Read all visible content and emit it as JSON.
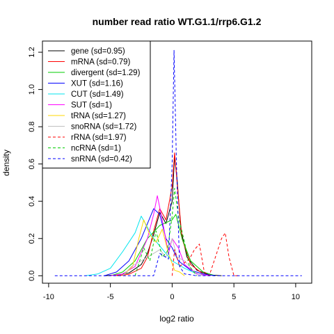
{
  "chart_data": {
    "type": "line",
    "title": "number read ratio WT.G1.1/rrp6.G1.2",
    "xlabel": "log2 ratio",
    "ylabel": "density",
    "xlim": [
      -10.5,
      11.3
    ],
    "ylim": [
      -0.04,
      1.26
    ],
    "xticks": [
      -10,
      -5,
      0,
      5,
      10
    ],
    "xtick_labels": [
      "-10",
      "-5",
      "0",
      "5",
      "10"
    ],
    "yticks": [
      0.0,
      0.2,
      0.4,
      0.6,
      0.8,
      1.0,
      1.2
    ],
    "ytick_labels": [
      "0.0",
      "0.2",
      "0.4",
      "0.6",
      "0.8",
      "1.0",
      "1.2"
    ],
    "grid": false,
    "legend_position": "top-left",
    "series": [
      {
        "name": "gene (sd=0.95)",
        "color": "#000000",
        "dash": "solid",
        "points": [
          [
            -5.5,
            0
          ],
          [
            -4.5,
            0.004
          ],
          [
            -3.5,
            0.015
          ],
          [
            -2.5,
            0.06
          ],
          [
            -2,
            0.12
          ],
          [
            -1.5,
            0.22
          ],
          [
            -1,
            0.34
          ],
          [
            -0.5,
            0.28
          ],
          [
            0,
            0.4
          ],
          [
            0.2,
            0.64
          ],
          [
            0.4,
            0.52
          ],
          [
            0.7,
            0.25
          ],
          [
            1.2,
            0.1
          ],
          [
            2,
            0.03
          ],
          [
            3,
            0.005
          ],
          [
            4,
            0
          ]
        ]
      },
      {
        "name": "mRNA (sd=0.79)",
        "color": "#ff0000",
        "dash": "solid",
        "points": [
          [
            -4.5,
            0
          ],
          [
            -3.5,
            0.008
          ],
          [
            -2.5,
            0.04
          ],
          [
            -2,
            0.1
          ],
          [
            -1.5,
            0.24
          ],
          [
            -1,
            0.36
          ],
          [
            -0.5,
            0.3
          ],
          [
            0,
            0.48
          ],
          [
            0.2,
            0.66
          ],
          [
            0.4,
            0.5
          ],
          [
            0.8,
            0.2
          ],
          [
            1.5,
            0.06
          ],
          [
            2.5,
            0.01
          ],
          [
            3.5,
            0
          ]
        ]
      },
      {
        "name": "divergent (sd=1.29)",
        "color": "#00cd00",
        "dash": "solid",
        "points": [
          [
            -5,
            0
          ],
          [
            -4,
            0.02
          ],
          [
            -3,
            0.08
          ],
          [
            -2,
            0.2
          ],
          [
            -1,
            0.27
          ],
          [
            0,
            0.3
          ],
          [
            0.3,
            0.33
          ],
          [
            0.8,
            0.2
          ],
          [
            1.5,
            0.08
          ],
          [
            2.5,
            0.02
          ],
          [
            3.5,
            0
          ]
        ]
      },
      {
        "name": "XUT (sd=1.16)",
        "color": "#0000ff",
        "dash": "solid",
        "points": [
          [
            -5.5,
            0
          ],
          [
            -4.5,
            0.02
          ],
          [
            -3.5,
            0.08
          ],
          [
            -2.5,
            0.2
          ],
          [
            -1.5,
            0.36
          ],
          [
            -1,
            0.33
          ],
          [
            -0.5,
            0.2
          ],
          [
            0,
            0.15
          ],
          [
            0.5,
            0.08
          ],
          [
            1.5,
            0.03
          ],
          [
            2.5,
            0.01
          ],
          [
            3.5,
            0
          ]
        ]
      },
      {
        "name": "CUT (sd=1.49)",
        "color": "#00e5ee",
        "dash": "solid",
        "points": [
          [
            -7,
            0
          ],
          [
            -6,
            0.01
          ],
          [
            -5,
            0.04
          ],
          [
            -4,
            0.13
          ],
          [
            -3,
            0.23
          ],
          [
            -2.5,
            0.32
          ],
          [
            -2,
            0.26
          ],
          [
            -1.5,
            0.2
          ],
          [
            -1,
            0.16
          ],
          [
            0,
            0.08
          ],
          [
            1,
            0.04
          ],
          [
            2,
            0.01
          ],
          [
            3,
            0
          ]
        ]
      },
      {
        "name": "SUT (sd=1)",
        "color": "#ff00ff",
        "dash": "solid",
        "points": [
          [
            -5,
            0
          ],
          [
            -4,
            0.01
          ],
          [
            -3,
            0.05
          ],
          [
            -2,
            0.2
          ],
          [
            -1.5,
            0.33
          ],
          [
            -1.2,
            0.43
          ],
          [
            -0.8,
            0.3
          ],
          [
            -0.3,
            0.12
          ],
          [
            0,
            0.2
          ],
          [
            0.5,
            0.15
          ],
          [
            1,
            0.06
          ],
          [
            2,
            0.01
          ],
          [
            3,
            0
          ]
        ]
      },
      {
        "name": "tRNA (sd=1.27)",
        "color": "#ffd700",
        "dash": "solid",
        "points": [
          [
            -4,
            0
          ],
          [
            -3.2,
            0.05
          ],
          [
            -2.7,
            0.2
          ],
          [
            -2.3,
            0.3
          ],
          [
            -1.8,
            0.22
          ],
          [
            -1.3,
            0.18
          ],
          [
            -0.8,
            0.25
          ],
          [
            -0.3,
            0.12
          ],
          [
            0.2,
            0.03
          ],
          [
            0.6,
            0.02
          ],
          [
            1,
            0
          ]
        ]
      },
      {
        "name": "snoRNA (sd=1.72)",
        "color": "#c0c0c0",
        "dash": "solid",
        "points": [
          [
            -4,
            0
          ],
          [
            -3.3,
            0.05
          ],
          [
            -2.5,
            0.08
          ],
          [
            -2,
            0.1
          ],
          [
            -1.5,
            0.12
          ],
          [
            -1,
            0.14
          ],
          [
            -0.5,
            0.1
          ],
          [
            0,
            0.2
          ],
          [
            0.4,
            0.1
          ],
          [
            1,
            0.08
          ],
          [
            1.8,
            0.02
          ],
          [
            2.5,
            0
          ]
        ]
      },
      {
        "name": "rRNA (sd=1.97)",
        "color": "#ff0000",
        "dash": "dashed",
        "points": [
          [
            0,
            0
          ],
          [
            0.2,
            0.14
          ],
          [
            0.6,
            0.05
          ],
          [
            1.4,
            0.09
          ],
          [
            1.8,
            0.14
          ],
          [
            2.2,
            0.17
          ],
          [
            2.6,
            0.02
          ],
          [
            3,
            0
          ],
          [
            4,
            0.2
          ],
          [
            4.3,
            0.23
          ],
          [
            4.6,
            0.1
          ],
          [
            5,
            0
          ],
          [
            5.5,
            0
          ]
        ]
      },
      {
        "name": "ncRNA (sd=1)",
        "color": "#00cd00",
        "dash": "dashed",
        "points": [
          [
            -3,
            0
          ],
          [
            -2.3,
            0.15
          ],
          [
            -1.8,
            0.08
          ],
          [
            -1.3,
            0.24
          ],
          [
            -0.8,
            0.1
          ],
          [
            -0.4,
            0.13
          ],
          [
            0,
            0.32
          ],
          [
            0.2,
            0.47
          ],
          [
            0.5,
            0.32
          ],
          [
            1,
            0.18
          ],
          [
            1.4,
            0.05
          ],
          [
            2,
            0
          ]
        ]
      },
      {
        "name": "snRNA (sd=0.42)",
        "color": "#0000ff",
        "dash": "dashed",
        "points": [
          [
            -9.5,
            0
          ],
          [
            -1.5,
            0
          ],
          [
            -1,
            0.12
          ],
          [
            -0.3,
            0.09
          ],
          [
            0,
            0.6
          ],
          [
            0.15,
            1.21
          ],
          [
            0.35,
            0.6
          ],
          [
            0.6,
            0.05
          ],
          [
            1,
            0.01
          ],
          [
            2,
            0
          ],
          [
            10.5,
            0
          ]
        ]
      }
    ]
  }
}
